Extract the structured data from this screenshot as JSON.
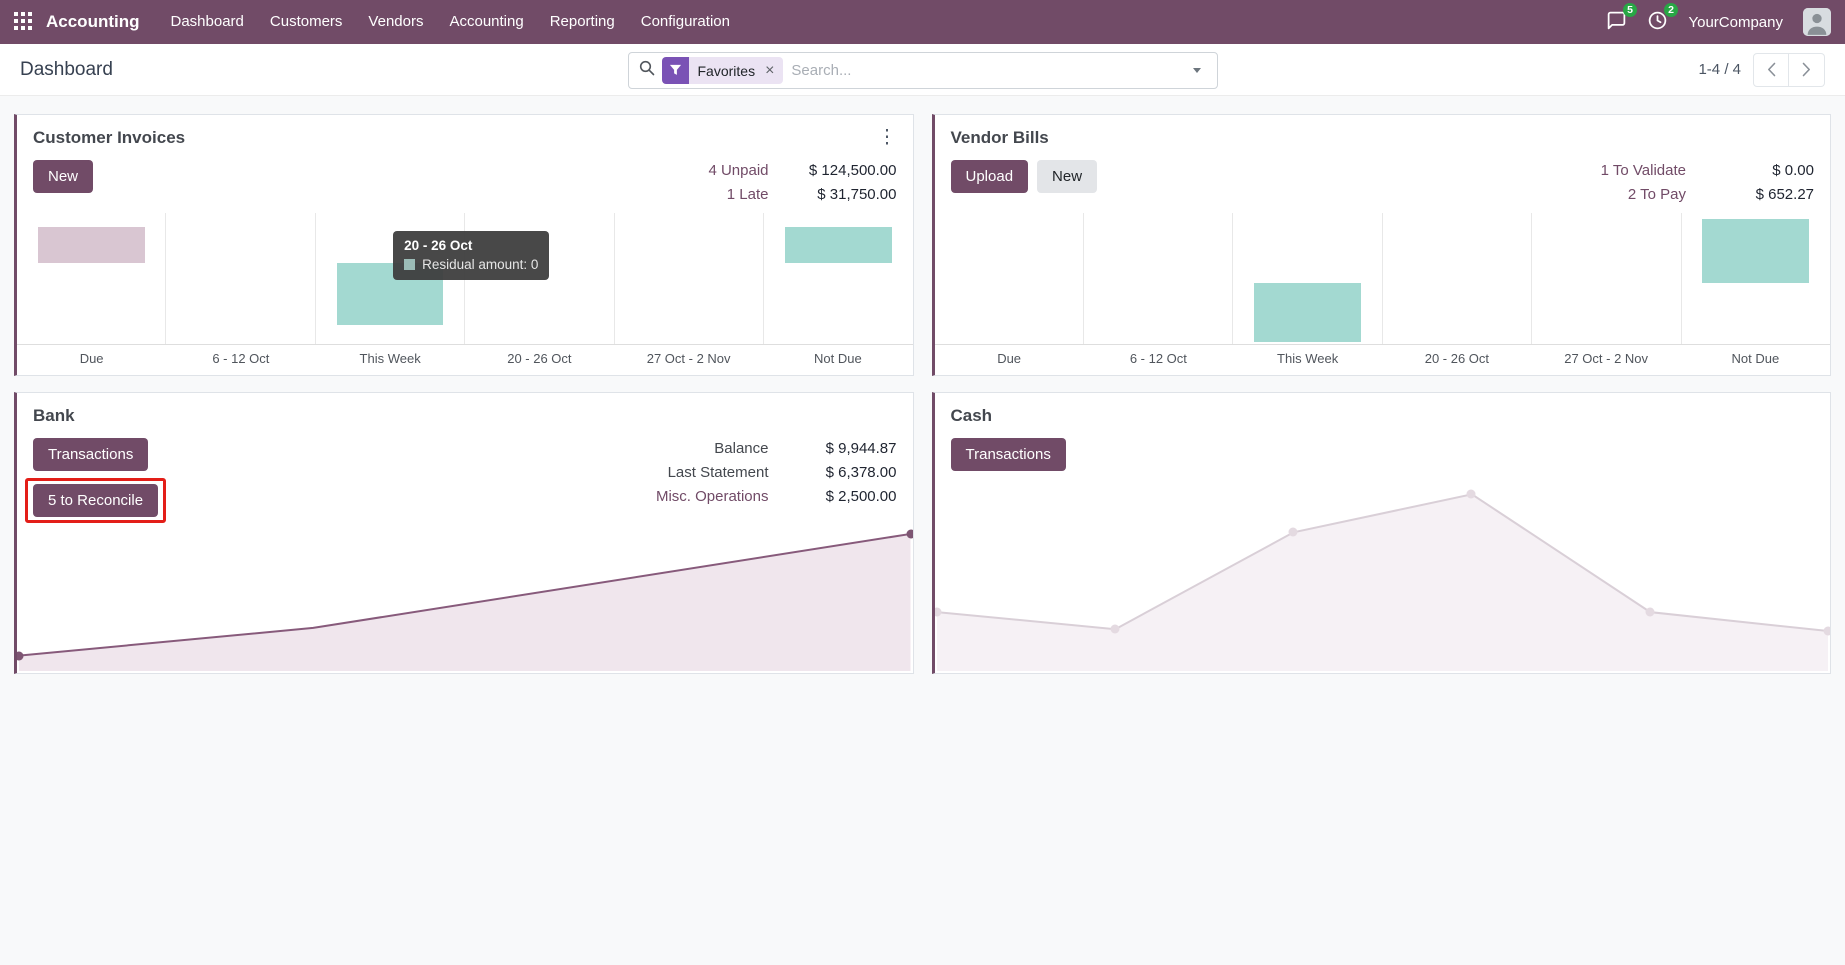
{
  "theme": {
    "accent": "#714B67",
    "link": "#714B67",
    "badge_green": "#28a745",
    "annotation_red": "#e31e18",
    "chip_bg": "#ebe3f3",
    "chip_icon_bg": "#7a52b5"
  },
  "navbar": {
    "app_name": "Accounting",
    "menu": [
      "Dashboard",
      "Customers",
      "Vendors",
      "Accounting",
      "Reporting",
      "Configuration"
    ],
    "messages_badge": "5",
    "activities_badge": "2",
    "company": "YourCompany"
  },
  "control_panel": {
    "breadcrumb": "Dashboard",
    "search": {
      "facet": "Favorites",
      "placeholder": "Search..."
    },
    "pager": {
      "value": "1-4 / 4"
    }
  },
  "cards": {
    "customer_invoices": {
      "title": "Customer Invoices",
      "buttons": {
        "new": "New"
      },
      "stats": [
        {
          "label": "4 Unpaid",
          "value": "$ 124,500.00"
        },
        {
          "label": "1 Late",
          "value": "$ 31,750.00"
        }
      ],
      "tooltip": {
        "title": "20 - 26 Oct",
        "text": "Residual amount: 0"
      }
    },
    "vendor_bills": {
      "title": "Vendor Bills",
      "buttons": {
        "upload": "Upload",
        "new": "New"
      },
      "stats": [
        {
          "label": "1 To Validate",
          "value": "$ 0.00"
        },
        {
          "label": "2 To Pay",
          "value": "$ 652.27"
        }
      ]
    },
    "bank": {
      "title": "Bank",
      "buttons": {
        "transactions": "Transactions",
        "reconcile": "5 to Reconcile"
      },
      "stats": [
        {
          "label": "Balance",
          "value": "$ 9,944.87"
        },
        {
          "label": "Last Statement",
          "value": "$ 6,378.00"
        },
        {
          "label": "Misc. Operations",
          "value": "$ 2,500.00"
        }
      ]
    },
    "cash": {
      "title": "Cash",
      "buttons": {
        "transactions": "Transactions"
      }
    }
  },
  "chart_data": [
    {
      "id": "customer-invoices",
      "title": "Customer Invoices",
      "type": "bar",
      "categories": [
        "Due",
        "6 - 12 Oct",
        "This Week",
        "20 - 26 Oct",
        "27 Oct - 2 Nov",
        "Not Due"
      ],
      "series": [
        {
          "name": "Residual amount",
          "values": [
            31,
            0,
            -53,
            0,
            0,
            31
          ]
        }
      ],
      "ylim": [
        -69,
        43
      ],
      "colors": [
        "#d9c6d2",
        null,
        "#a3d9d1",
        null,
        null,
        "#a3d9d1"
      ],
      "grid": "vertical",
      "xlabel": "",
      "ylabel": ""
    },
    {
      "id": "vendor-bills",
      "title": "Vendor Bills",
      "type": "bar",
      "categories": [
        "Due",
        "6 - 12 Oct",
        "This Week",
        "20 - 26 Oct",
        "27 Oct - 2 Nov",
        "Not Due"
      ],
      "series": [
        {
          "name": "Residual amount",
          "values": [
            0,
            0,
            -50,
            0,
            0,
            55
          ]
        }
      ],
      "ylim": [
        -52,
        60
      ],
      "colors": [
        null,
        null,
        "#a3d9d1",
        null,
        null,
        "#a3d9d1"
      ],
      "grid": "vertical",
      "xlabel": "",
      "ylabel": ""
    },
    {
      "id": "bank-balance",
      "title": "Bank",
      "type": "area",
      "x": [
        0,
        0.33,
        1
      ],
      "values": [
        0.1,
        0.28,
        0.89
      ],
      "ylim": [
        0,
        1
      ],
      "line_color": "#875A7B",
      "fill_color": "#f0e6ed",
      "marker": "ends",
      "marker_color": "#7d5572",
      "grid": "off"
    },
    {
      "id": "cash-balance",
      "title": "Cash",
      "type": "area",
      "x": [
        0,
        0.2,
        0.4,
        0.6,
        0.8,
        1
      ],
      "values": [
        0.31,
        0.22,
        0.73,
        0.93,
        0.31,
        0.21
      ],
      "ylim": [
        0,
        1
      ],
      "line_color": "#d9cfd7",
      "fill_color": "#f6f1f5",
      "marker": "all",
      "marker_color": "#e4dae1",
      "grid": "off"
    }
  ]
}
